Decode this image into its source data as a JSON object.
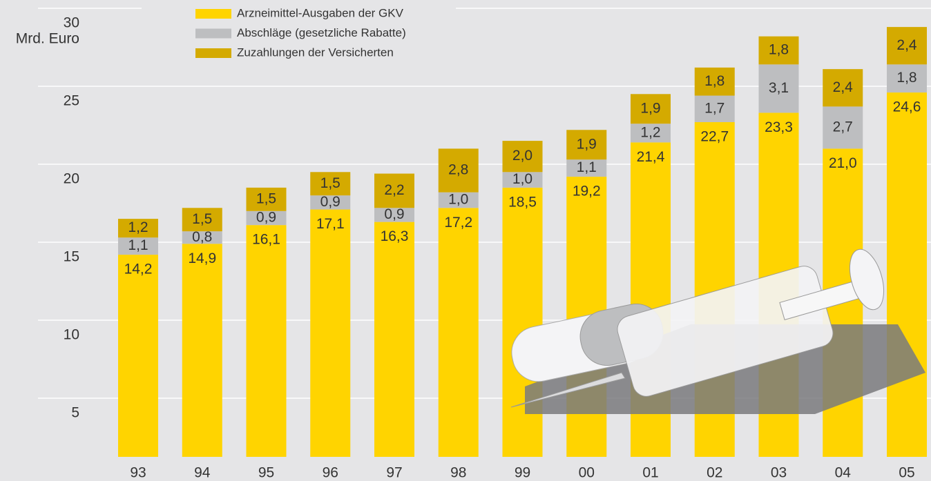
{
  "chart_data": {
    "type": "stacked_bar",
    "y_label": "Mrd. Euro",
    "categories": [
      "93",
      "94",
      "95",
      "96",
      "97",
      "98",
      "99",
      "00",
      "01",
      "02",
      "03",
      "04",
      "05"
    ],
    "series": [
      {
        "name": "Arzneimittel-Ausgaben der GKV",
        "color": "#ffd400",
        "values": [
          14.2,
          14.9,
          16.1,
          17.1,
          16.3,
          17.2,
          18.5,
          19.2,
          21.4,
          22.7,
          23.3,
          21.0,
          24.6
        ],
        "value_labels": [
          "14,2",
          "14,9",
          "16,1",
          "17,1",
          "16,3",
          "17,2",
          "18,5",
          "19,2",
          "21,4",
          "22,7",
          "23,3",
          "21,0",
          "24,6"
        ]
      },
      {
        "name": "Abschläge (gesetzliche Rabatte)",
        "color": "#bdbec0",
        "values": [
          1.1,
          0.8,
          0.9,
          0.9,
          0.9,
          1.0,
          1.0,
          1.1,
          1.2,
          1.7,
          3.1,
          2.7,
          1.8
        ],
        "value_labels": [
          "1,1",
          "0,8",
          "0,9",
          "0,9",
          "0,9",
          "1,0",
          "1,0",
          "1,1",
          "1,2",
          "1,7",
          "3,1",
          "2,7",
          "1,8"
        ]
      },
      {
        "name": "Zuzahlungen der Versicherten",
        "color": "#d4aa00",
        "values": [
          1.2,
          1.5,
          1.5,
          1.5,
          2.2,
          2.8,
          2.0,
          1.9,
          1.9,
          1.8,
          1.8,
          2.4,
          2.4
        ],
        "value_labels": [
          "1,2",
          "1,5",
          "1,5",
          "1,5",
          "2,2",
          "2,8",
          "2,0",
          "1,9",
          "1,9",
          "1,8",
          "1,8",
          "2,4",
          "2,4"
        ]
      }
    ],
    "ylim": [
      0,
      30
    ],
    "yticks": [
      5,
      10,
      15,
      20,
      25,
      30
    ],
    "grid": true
  }
}
